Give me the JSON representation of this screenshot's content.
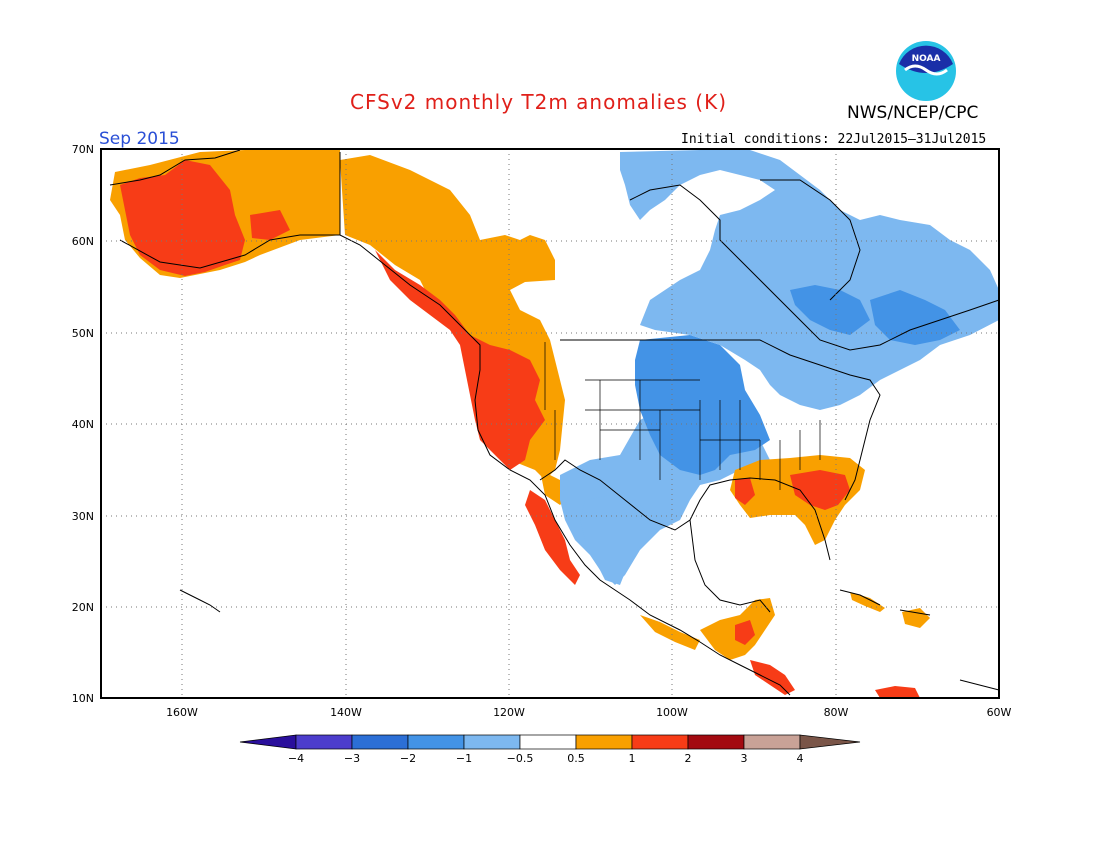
{
  "title": "CFSv2 monthly T2m anomalies (K)",
  "agency": "NWS/NCEP/CPC",
  "logo_text": "NOAA",
  "month": "Sep 2015",
  "initial_conditions": "Initial conditions: 22Jul2015–31Jul2015",
  "map": {
    "lat_labels": [
      "70N",
      "60N",
      "50N",
      "40N",
      "30N",
      "20N",
      "10N"
    ],
    "lon_labels": [
      "160W",
      "140W",
      "120W",
      "100W",
      "80W",
      "60W"
    ],
    "ocean_color": "#ffffff",
    "gridline_style": "dotted"
  },
  "colorbar": {
    "ticks": [
      "−4",
      "−3",
      "−2",
      "−1",
      "−0.5",
      "0.5",
      "1",
      "2",
      "3",
      "4"
    ],
    "colors": [
      "#2a0f9c",
      "#4c3dcc",
      "#2c6fd6",
      "#4393e6",
      "#7db8f0",
      "#ffffff",
      "#f9a000",
      "#f73c17",
      "#a30a10",
      "#c9a297",
      "#7a5548"
    ]
  },
  "colors": {
    "title": "#e0201a",
    "month": "#2a4fd6",
    "light_blue": "#7db8f0",
    "blue": "#4393e6",
    "orange": "#f9a000",
    "red": "#f73c17"
  }
}
